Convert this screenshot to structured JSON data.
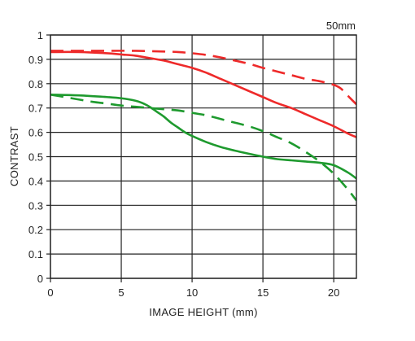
{
  "chart_data": {
    "type": "line",
    "title": "",
    "annotation": "50mm",
    "xlabel": "IMAGE HEIGHT (mm)",
    "ylabel": "CONTRAST",
    "xlim": [
      0,
      21.6
    ],
    "ylim": [
      0,
      1
    ],
    "xticks": [
      0,
      5,
      10,
      15,
      20
    ],
    "xtick_labels": [
      "0",
      "5",
      "10",
      "15",
      "20"
    ],
    "yticks": [
      0,
      0.1,
      0.2,
      0.3,
      0.4,
      0.5,
      0.6,
      0.7,
      0.8,
      0.9,
      1
    ],
    "ytick_labels": [
      "0",
      "0.1",
      "0.2",
      "0.3",
      "0.4",
      "0.5",
      "0.6",
      "0.7",
      "0.8",
      "0.9",
      "1"
    ],
    "grid": true,
    "legend": "none",
    "series": [
      {
        "color": "#ee2a2a",
        "dash": false,
        "x": [
          0,
          2,
          4,
          5,
          6,
          7,
          8,
          9,
          10,
          11,
          12,
          13,
          14,
          15,
          16,
          17,
          18,
          19,
          20,
          21,
          21.6
        ],
        "y": [
          0.93,
          0.93,
          0.925,
          0.92,
          0.915,
          0.905,
          0.895,
          0.88,
          0.865,
          0.845,
          0.82,
          0.795,
          0.77,
          0.745,
          0.72,
          0.7,
          0.675,
          0.65,
          0.625,
          0.595,
          0.58
        ]
      },
      {
        "color": "#ee2a2a",
        "dash": true,
        "x": [
          0,
          2,
          4,
          6,
          8,
          9,
          10,
          11,
          12,
          13,
          14,
          15,
          16,
          17,
          18,
          19,
          20,
          20.5,
          21,
          21.6
        ],
        "y": [
          0.935,
          0.935,
          0.935,
          0.935,
          0.932,
          0.93,
          0.925,
          0.918,
          0.908,
          0.895,
          0.882,
          0.865,
          0.85,
          0.835,
          0.82,
          0.81,
          0.795,
          0.78,
          0.75,
          0.715
        ]
      },
      {
        "color": "#1e9a2e",
        "dash": false,
        "x": [
          0,
          2,
          4,
          5,
          6,
          6.5,
          7,
          7.5,
          8,
          8.5,
          9,
          9.5,
          10,
          11,
          12,
          13,
          14,
          15,
          16,
          17,
          18,
          19,
          20,
          21,
          21.6
        ],
        "y": [
          0.755,
          0.752,
          0.745,
          0.74,
          0.73,
          0.72,
          0.705,
          0.685,
          0.665,
          0.64,
          0.62,
          0.6,
          0.585,
          0.56,
          0.54,
          0.525,
          0.512,
          0.5,
          0.49,
          0.485,
          0.48,
          0.475,
          0.465,
          0.435,
          0.41
        ]
      },
      {
        "color": "#1e9a2e",
        "dash": true,
        "x": [
          0,
          1,
          2,
          3,
          4,
          5,
          6,
          7,
          8,
          9,
          10,
          11,
          12,
          13,
          14,
          15,
          16,
          17,
          18,
          19,
          20,
          21,
          21.6
        ],
        "y": [
          0.755,
          0.745,
          0.735,
          0.725,
          0.718,
          0.71,
          0.705,
          0.7,
          0.695,
          0.69,
          0.68,
          0.67,
          0.655,
          0.64,
          0.625,
          0.605,
          0.58,
          0.555,
          0.52,
          0.48,
          0.43,
          0.365,
          0.32
        ]
      }
    ]
  }
}
